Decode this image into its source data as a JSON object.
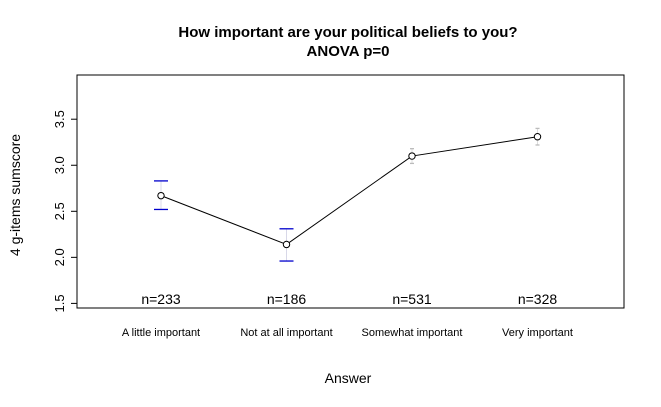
{
  "chart_data": {
    "type": "line",
    "title": "How important are your political beliefs to you?",
    "subtitle": "ANOVA p=0",
    "xlabel": "Answer",
    "ylabel": "4 g-items sumscore",
    "categories": [
      "A little important",
      "Not at all important",
      "Somewhat important",
      "Very important"
    ],
    "values": [
      2.67,
      2.14,
      3.1,
      3.31
    ],
    "ci_lower": [
      2.52,
      1.96,
      3.02,
      3.22
    ],
    "ci_upper": [
      2.83,
      2.31,
      3.18,
      3.4
    ],
    "counts": [
      "n=233",
      "n=186",
      "n=531",
      "n=328"
    ],
    "yticks": [
      1.5,
      2.0,
      2.5,
      3.0,
      3.5
    ],
    "ytick_labels": [
      "1.5",
      "2.0",
      "2.5",
      "3.0",
      "3.5"
    ],
    "ylim": [
      1.45,
      3.98
    ],
    "grid": false,
    "colors": {
      "line": "#000000",
      "error_bar": "#0000cc",
      "error_bar_faint": "#bbbbbb"
    }
  }
}
